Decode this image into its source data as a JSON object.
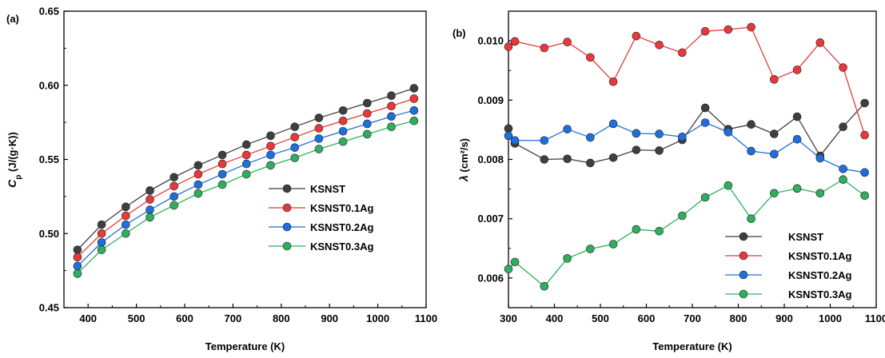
{
  "chart_data": [
    {
      "type": "line",
      "panel_label": "(a)",
      "xlabel": "Temperature (K)",
      "ylabel_main": "C",
      "ylabel_sub": "p",
      "ylabel_unit": " (J/(g·K))",
      "xlim": [
        350,
        1100
      ],
      "ylim": [
        0.45,
        0.65
      ],
      "xticks": [
        "400",
        "500",
        "600",
        "700",
        "800",
        "900",
        "1000",
        "1100"
      ],
      "yticks": [
        "0.45",
        "0.50",
        "0.55",
        "0.60",
        "0.65"
      ],
      "legend_position": "center-right",
      "x": [
        378,
        428,
        478,
        528,
        578,
        628,
        678,
        728,
        778,
        828,
        878,
        928,
        978,
        1028,
        1075
      ],
      "series": [
        {
          "name": "KSNST",
          "color": "#3f3f3f",
          "values": [
            0.489,
            0.506,
            0.518,
            0.529,
            0.538,
            0.546,
            0.553,
            0.56,
            0.566,
            0.572,
            0.578,
            0.583,
            0.588,
            0.593,
            0.598
          ]
        },
        {
          "name": "KSNST0.1Ag",
          "color": "#e8383b",
          "values": [
            0.484,
            0.5,
            0.512,
            0.523,
            0.532,
            0.54,
            0.547,
            0.553,
            0.559,
            0.565,
            0.571,
            0.576,
            0.581,
            0.586,
            0.591
          ]
        },
        {
          "name": "KSNST0.2Ag",
          "color": "#1f6fdb",
          "values": [
            0.478,
            0.494,
            0.506,
            0.516,
            0.525,
            0.533,
            0.54,
            0.547,
            0.553,
            0.558,
            0.564,
            0.569,
            0.574,
            0.579,
            0.583
          ]
        },
        {
          "name": "KSNST0.3Ag",
          "color": "#2fae5e",
          "values": [
            0.473,
            0.489,
            0.5,
            0.511,
            0.519,
            0.527,
            0.533,
            0.54,
            0.546,
            0.551,
            0.557,
            0.562,
            0.567,
            0.572,
            0.576
          ]
        }
      ]
    },
    {
      "type": "line",
      "panel_label": "(b)",
      "xlabel": "Temperature (K)",
      "ylabel_main": "λ",
      "ylabel_unit": " (cm²/s)",
      "xlim": [
        300,
        1100
      ],
      "ylim": [
        0.0055,
        0.0105
      ],
      "xticks": [
        "300",
        "400",
        "500",
        "600",
        "700",
        "800",
        "900",
        "1000",
        "1100"
      ],
      "yticks": [
        "0.006",
        "0.007",
        "0.008",
        "0.009",
        "0.010"
      ],
      "legend_position": "bottom-right",
      "x": [
        300,
        314,
        378,
        428,
        478,
        528,
        578,
        628,
        678,
        728,
        778,
        828,
        878,
        928,
        978,
        1028,
        1075
      ],
      "series": [
        {
          "name": "KSNST",
          "color": "#3f3f3f",
          "values": [
            0.00852,
            0.00827,
            0.008,
            0.00801,
            0.00794,
            0.00803,
            0.00816,
            0.00815,
            0.00833,
            0.00887,
            0.00851,
            0.00859,
            0.00843,
            0.00872,
            0.00806,
            0.00855,
            0.00895
          ]
        },
        {
          "name": "KSNST0.1Ag",
          "color": "#e8383b",
          "values": [
            0.0099,
            0.00999,
            0.00988,
            0.00998,
            0.00972,
            0.00931,
            0.01008,
            0.00993,
            0.0098,
            0.01016,
            0.01019,
            0.01023,
            0.00935,
            0.00951,
            0.00997,
            0.00955,
            0.00841
          ]
        },
        {
          "name": "KSNST0.2Ag",
          "color": "#1f6fdb",
          "values": [
            0.0084,
            0.00832,
            0.00832,
            0.00851,
            0.00837,
            0.0086,
            0.00844,
            0.00843,
            0.00838,
            0.00862,
            0.00846,
            0.00814,
            0.00809,
            0.00834,
            0.00802,
            0.00784,
            0.00778
          ]
        },
        {
          "name": "KSNST0.3Ag",
          "color": "#2fae5e",
          "values": [
            0.00615,
            0.00627,
            0.00586,
            0.00633,
            0.00649,
            0.00657,
            0.00682,
            0.00679,
            0.00705,
            0.00736,
            0.00756,
            0.007,
            0.00743,
            0.00751,
            0.00743,
            0.00766,
            0.00739
          ]
        }
      ]
    }
  ]
}
